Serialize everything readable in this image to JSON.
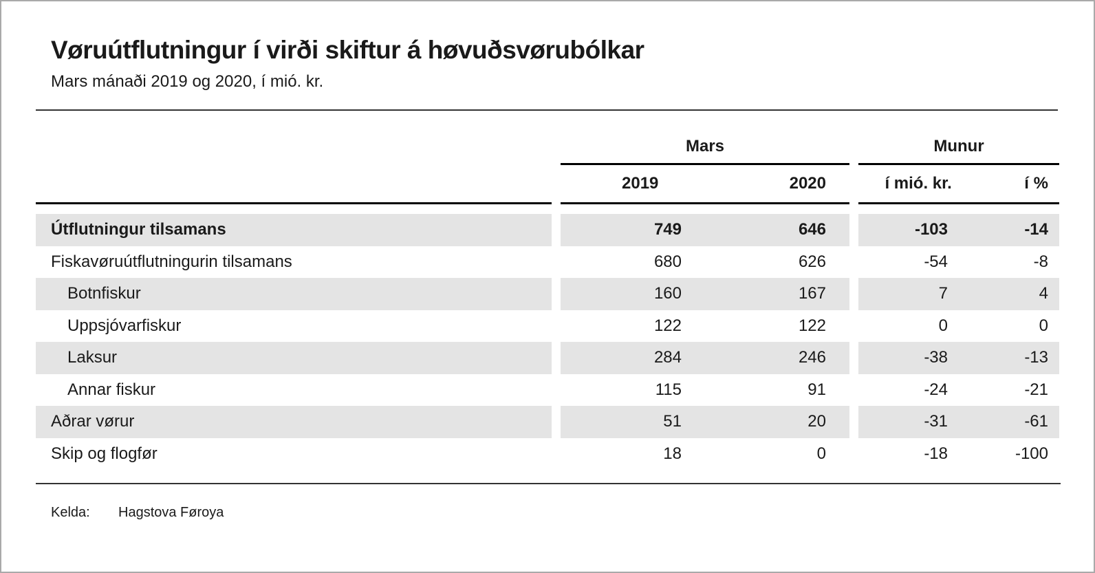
{
  "page": {
    "title": "Vøruútflutningur í virði skiftur á høvuðsvørubólkar",
    "subtitle": "Mars mánaði 2019 og 2020, í mió. kr.",
    "source_label": "Kelda:",
    "source_value": "Hagstova Føroya"
  },
  "table": {
    "group_headers": {
      "mars": "Mars",
      "munur": "Munur"
    },
    "column_headers": {
      "y2019": "2019",
      "y2020": "2020",
      "diff_kr": "í mió. kr.",
      "diff_pct": "í %"
    },
    "rows": [
      {
        "label": "Útflutningur tilsamans",
        "values": [
          "749",
          "646",
          "-103",
          "-14"
        ],
        "bold": true,
        "shaded": true,
        "indent": false
      },
      {
        "label": "Fiskavøruútflutningurin tilsamans",
        "values": [
          "680",
          "626",
          "-54",
          "-8"
        ],
        "bold": false,
        "shaded": false,
        "indent": false
      },
      {
        "label": "Botnfiskur",
        "values": [
          "160",
          "167",
          "7",
          "4"
        ],
        "bold": false,
        "shaded": true,
        "indent": true
      },
      {
        "label": "Uppsjóvarfiskur",
        "values": [
          "122",
          "122",
          "0",
          "0"
        ],
        "bold": false,
        "shaded": false,
        "indent": true
      },
      {
        "label": "Laksur",
        "values": [
          "284",
          "246",
          "-38",
          "-13"
        ],
        "bold": false,
        "shaded": true,
        "indent": true
      },
      {
        "label": "Annar fiskur",
        "values": [
          "115",
          "91",
          "-24",
          "-21"
        ],
        "bold": false,
        "shaded": false,
        "indent": true
      },
      {
        "label": "Aðrar vørur",
        "values": [
          "51",
          "20",
          "-31",
          "-61"
        ],
        "bold": false,
        "shaded": true,
        "indent": false
      },
      {
        "label": "Skip og flogfør",
        "values": [
          "18",
          "0",
          "-18",
          "-100"
        ],
        "bold": false,
        "shaded": false,
        "indent": false
      }
    ]
  },
  "chart_data": {
    "type": "table",
    "title": "Vøruútflutningur í virði skiftur á høvuðsvørubólkar",
    "subtitle": "Mars mánaði 2019 og 2020, í mió. kr.",
    "column_groups": [
      "Mars",
      "Munur"
    ],
    "columns": [
      "",
      "Mars 2019",
      "Mars 2020",
      "Munur í mió. kr.",
      "Munur í %"
    ],
    "rows": [
      [
        "Útflutningur tilsamans",
        749,
        646,
        -103,
        -14
      ],
      [
        "Fiskavøruútflutningurin tilsamans",
        680,
        626,
        -54,
        -8
      ],
      [
        "Botnfiskur",
        160,
        167,
        7,
        4
      ],
      [
        "Uppsjóvarfiskur",
        122,
        122,
        0,
        0
      ],
      [
        "Laksur",
        284,
        246,
        -38,
        -13
      ],
      [
        "Annar fiskur",
        115,
        91,
        -24,
        -21
      ],
      [
        "Aðrar vørur",
        51,
        20,
        -31,
        -61
      ],
      [
        "Skip og flogfør",
        18,
        0,
        -18,
        -100
      ]
    ],
    "source": "Hagstova Føroya"
  },
  "colors": {
    "stripe": "#e4e4e4",
    "text": "#1a1a1a",
    "rule_thick": "#000000",
    "rule_thin": "#333333",
    "window_border": "#a9a9a9"
  }
}
